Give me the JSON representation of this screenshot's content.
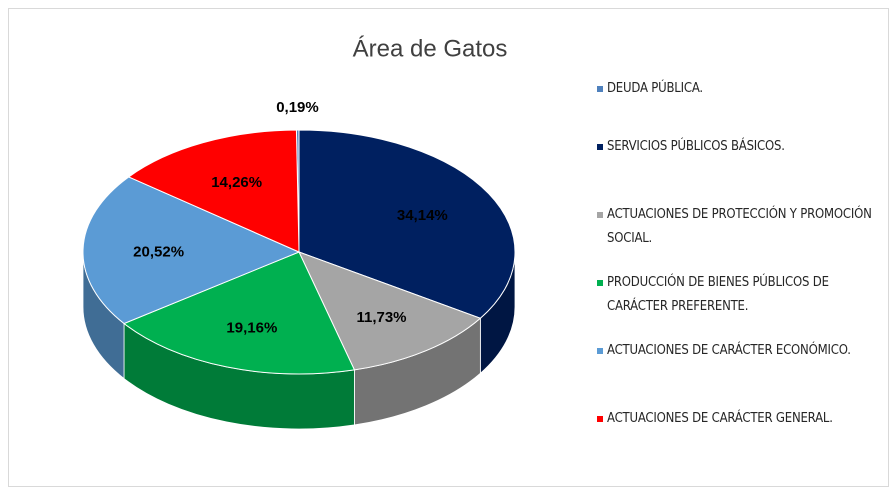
{
  "chart_data": {
    "type": "pie",
    "title": "Área de Gatos",
    "categories": [
      "DEUDA PÚBLICA.",
      "SERVICIOS PÚBLICOS BÁSICOS.",
      "ACTUACIONES DE PROTECCIÓN Y PROMOCIÓN SOCIAL.",
      "PRODUCCIÓN DE BIENES PÚBLICOS DE CARÁCTER PREFERENTE.",
      "ACTUACIONES DE CARÁCTER ECONÓMICO.",
      "ACTUACIONES DE CARÁCTER GENERAL."
    ],
    "values": [
      0.19,
      34.14,
      11.73,
      19.16,
      20.52,
      14.26
    ],
    "value_labels": [
      "0,19%",
      "34,14%",
      "11,73%",
      "19,16%",
      "20,52%",
      "14,26%"
    ],
    "colors": [
      "#4f81bd",
      "#002060",
      "#a5a5a5",
      "#00b050",
      "#5b9bd5",
      "#ff0000"
    ],
    "legend": "right"
  }
}
